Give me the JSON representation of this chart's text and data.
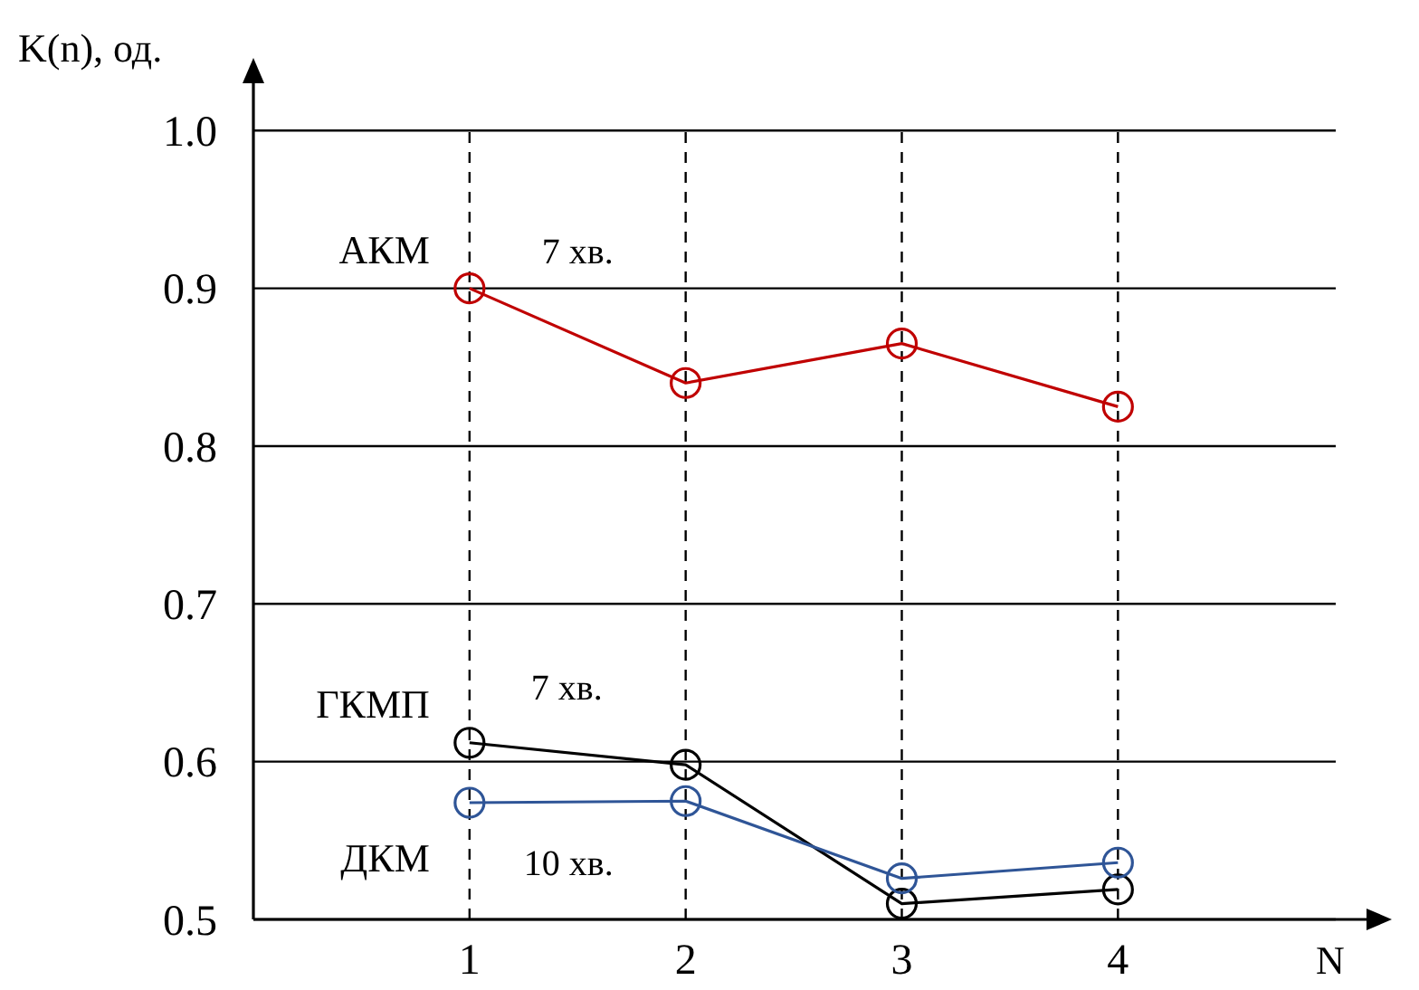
{
  "chart_data": {
    "type": "line",
    "ylabel": "K(n), од.",
    "xlabel": "N",
    "x": [
      1,
      2,
      3,
      4
    ],
    "xlim": [
      0,
      5.15
    ],
    "xticks": [
      1,
      2,
      3,
      4
    ],
    "ylim": [
      0.5,
      1.03
    ],
    "yticks": [
      0.5,
      0.6,
      0.7,
      0.8,
      0.9,
      {
        "value": 1,
        "label": "1.0"
      }
    ],
    "grid": true,
    "marker": "circle",
    "line_style": "solid",
    "series": [
      {
        "name": "АКМ",
        "color": "#c00000",
        "values": [
          0.9,
          0.84,
          0.865,
          0.825
        ]
      },
      {
        "name": "ГКМП",
        "color": "#000000",
        "values": [
          0.612,
          0.598,
          0.51,
          0.519
        ]
      },
      {
        "name": "ДКМ",
        "color": "#2f5597",
        "values": [
          0.574,
          0.575,
          0.526,
          0.536
        ]
      }
    ],
    "annotations": [
      "7 хв.",
      "7 хв.",
      "10 хв."
    ]
  }
}
